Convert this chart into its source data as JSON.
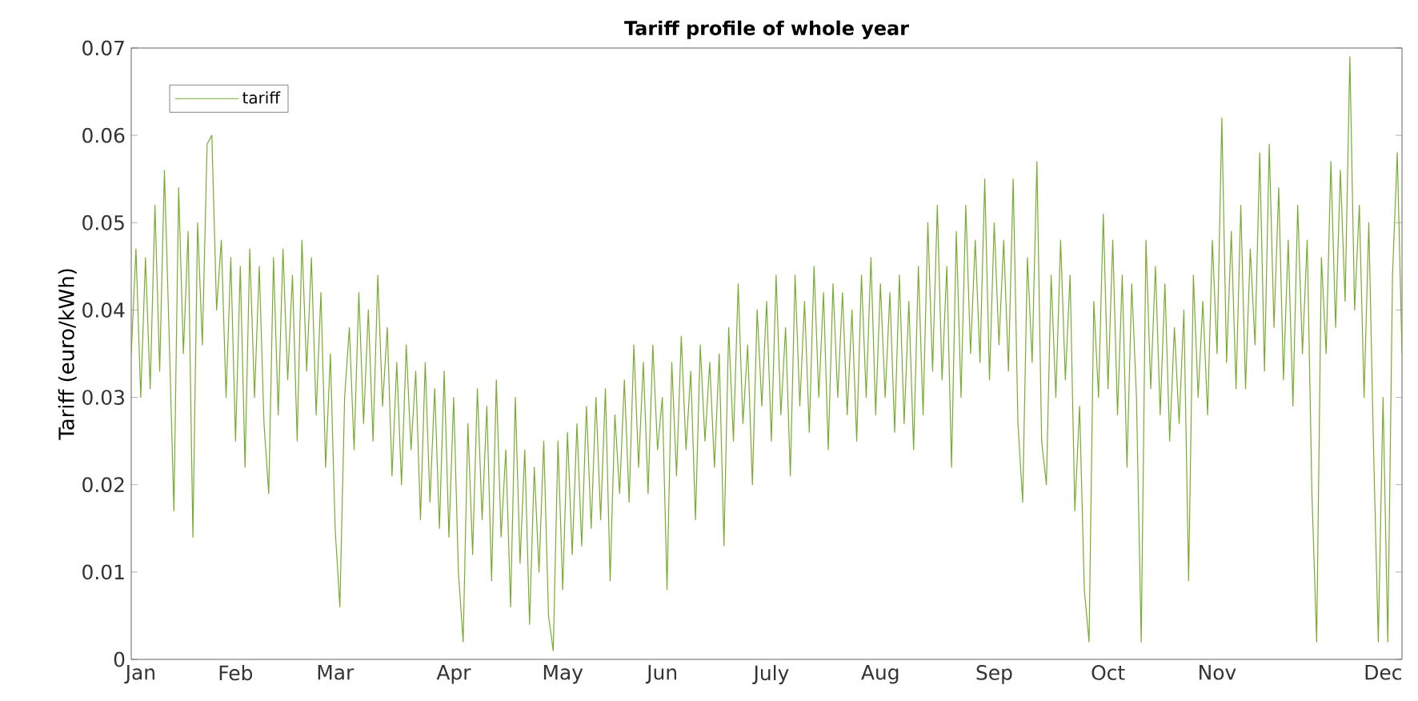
{
  "chart_data": {
    "type": "line",
    "title": "Tariff profile of whole year",
    "ylabel": "Tariff (euro/kWh)",
    "ylim": [
      0,
      0.07
    ],
    "categories": [
      null,
      null,
      "Jan",
      null,
      null,
      null,
      null,
      null,
      null,
      null,
      null,
      null,
      null,
      null,
      null,
      null,
      null,
      null,
      null,
      null,
      null,
      null,
      "Feb",
      null,
      null,
      null,
      null,
      null,
      null,
      null,
      null,
      null,
      null,
      null,
      null,
      null,
      null,
      null,
      null,
      null,
      null,
      null,
      null,
      "Mar",
      null,
      null,
      null,
      null,
      null,
      null,
      null,
      null,
      null,
      null,
      null,
      null,
      null,
      null,
      null,
      null,
      null,
      null,
      null,
      null,
      null,
      null,
      null,
      null,
      "Apr",
      null,
      null,
      null,
      null,
      null,
      null,
      null,
      null,
      null,
      null,
      null,
      null,
      null,
      null,
      null,
      null,
      null,
      null,
      null,
      null,
      null,
      null,
      "May",
      null,
      null,
      null,
      null,
      null,
      null,
      null,
      null,
      null,
      null,
      null,
      null,
      null,
      null,
      null,
      null,
      null,
      null,
      null,
      null,
      "Jun",
      null,
      null,
      null,
      null,
      null,
      null,
      null,
      null,
      null,
      null,
      null,
      null,
      null,
      null,
      null,
      null,
      null,
      null,
      null,
      null,
      null,
      null,
      "July",
      null,
      null,
      null,
      null,
      null,
      null,
      null,
      null,
      null,
      null,
      null,
      null,
      null,
      null,
      null,
      null,
      null,
      null,
      null,
      null,
      null,
      null,
      "Aug",
      null,
      null,
      null,
      null,
      null,
      null,
      null,
      null,
      null,
      null,
      null,
      null,
      null,
      null,
      null,
      null,
      null,
      null,
      null,
      null,
      null,
      null,
      null,
      "Sep",
      null,
      null,
      null,
      null,
      null,
      null,
      null,
      null,
      null,
      null,
      null,
      null,
      null,
      null,
      null,
      null,
      null,
      null,
      null,
      null,
      null,
      null,
      null,
      "Oct",
      null,
      null,
      null,
      null,
      null,
      null,
      null,
      null,
      null,
      null,
      null,
      null,
      null,
      null,
      null,
      null,
      null,
      null,
      null,
      null,
      null,
      null,
      "Nov",
      null,
      null,
      null,
      null,
      null,
      null,
      null,
      null,
      null,
      null,
      null,
      null,
      null,
      null,
      null,
      null,
      null,
      null,
      null,
      null,
      null,
      null,
      null,
      null,
      null,
      null,
      null,
      null,
      null,
      null,
      null,
      null,
      null,
      null,
      "Dec",
      null,
      null,
      null,
      null
    ],
    "yticks": [
      0,
      0.01,
      0.02,
      0.03,
      0.04,
      0.05,
      0.06,
      0.07
    ],
    "legend": "top left",
    "grid": false,
    "marker": "none",
    "line_style": "solid",
    "series": [
      {
        "name": "tariff",
        "color": "#77ac30",
        "values": [
          0.035,
          0.047,
          0.03,
          0.046,
          0.031,
          0.052,
          0.033,
          0.056,
          0.037,
          0.017,
          0.054,
          0.035,
          0.049,
          0.014,
          0.05,
          0.036,
          0.059,
          0.06,
          0.04,
          0.048,
          0.03,
          0.046,
          0.025,
          0.045,
          0.022,
          0.047,
          0.03,
          0.045,
          0.027,
          0.019,
          0.046,
          0.028,
          0.047,
          0.032,
          0.044,
          0.025,
          0.048,
          0.033,
          0.046,
          0.028,
          0.042,
          0.022,
          0.035,
          0.015,
          0.006,
          0.03,
          0.038,
          0.024,
          0.042,
          0.027,
          0.04,
          0.025,
          0.044,
          0.029,
          0.038,
          0.021,
          0.034,
          0.02,
          0.036,
          0.024,
          0.033,
          0.016,
          0.034,
          0.018,
          0.031,
          0.015,
          0.033,
          0.014,
          0.03,
          0.01,
          0.002,
          0.027,
          0.012,
          0.031,
          0.016,
          0.029,
          0.009,
          0.032,
          0.014,
          0.024,
          0.006,
          0.03,
          0.011,
          0.024,
          0.004,
          0.022,
          0.01,
          0.025,
          0.005,
          0.001,
          0.025,
          0.008,
          0.026,
          0.012,
          0.027,
          0.013,
          0.029,
          0.015,
          0.03,
          0.016,
          0.031,
          0.009,
          0.028,
          0.019,
          0.032,
          0.018,
          0.036,
          0.022,
          0.034,
          0.019,
          0.036,
          0.024,
          0.03,
          0.008,
          0.034,
          0.021,
          0.037,
          0.024,
          0.033,
          0.016,
          0.036,
          0.025,
          0.034,
          0.022,
          0.035,
          0.013,
          0.038,
          0.025,
          0.043,
          0.027,
          0.036,
          0.02,
          0.04,
          0.029,
          0.041,
          0.025,
          0.044,
          0.028,
          0.038,
          0.021,
          0.044,
          0.029,
          0.041,
          0.026,
          0.045,
          0.03,
          0.042,
          0.024,
          0.043,
          0.03,
          0.042,
          0.028,
          0.04,
          0.025,
          0.044,
          0.03,
          0.046,
          0.028,
          0.043,
          0.03,
          0.042,
          0.026,
          0.044,
          0.027,
          0.041,
          0.024,
          0.045,
          0.028,
          0.05,
          0.033,
          0.052,
          0.032,
          0.045,
          0.022,
          0.049,
          0.03,
          0.052,
          0.035,
          0.048,
          0.034,
          0.055,
          0.032,
          0.05,
          0.036,
          0.048,
          0.033,
          0.055,
          0.027,
          0.018,
          0.046,
          0.034,
          0.057,
          0.025,
          0.02,
          0.044,
          0.03,
          0.048,
          0.032,
          0.044,
          0.017,
          0.029,
          0.008,
          0.002,
          0.041,
          0.03,
          0.051,
          0.031,
          0.048,
          0.028,
          0.044,
          0.022,
          0.043,
          0.03,
          0.002,
          0.048,
          0.031,
          0.045,
          0.028,
          0.043,
          0.025,
          0.038,
          0.027,
          0.04,
          0.009,
          0.044,
          0.03,
          0.041,
          0.028,
          0.048,
          0.035,
          0.062,
          0.034,
          0.049,
          0.031,
          0.052,
          0.031,
          0.047,
          0.036,
          0.058,
          0.033,
          0.059,
          0.038,
          0.054,
          0.032,
          0.048,
          0.029,
          0.052,
          0.035,
          0.048,
          0.019,
          0.002,
          0.046,
          0.035,
          0.057,
          0.038,
          0.056,
          0.041,
          0.069,
          0.04,
          0.052,
          0.03,
          0.05,
          0.024,
          0.002,
          0.03,
          0.002,
          0.044,
          0.058,
          0.035
        ]
      }
    ]
  }
}
